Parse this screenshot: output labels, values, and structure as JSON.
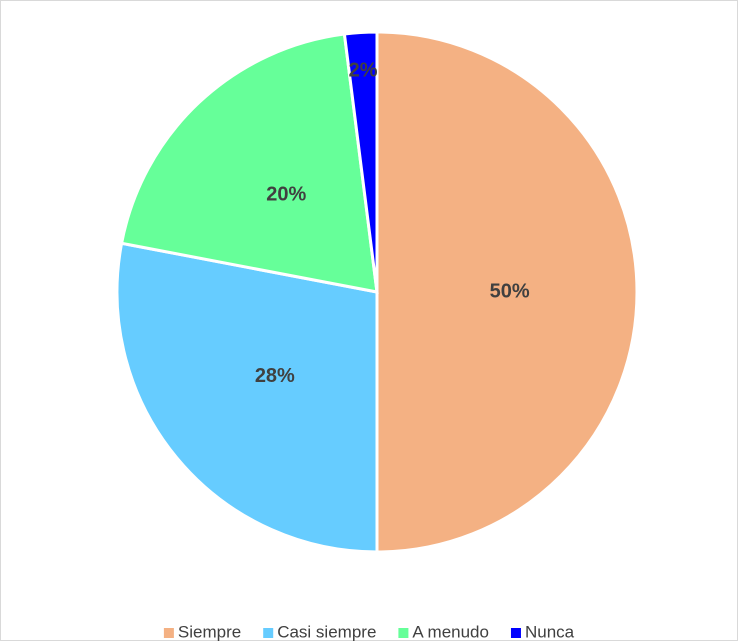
{
  "chart_data": {
    "type": "pie",
    "categories": [
      "Siempre",
      "Casi siempre",
      "A menudo",
      "Nunca"
    ],
    "values": [
      50,
      28,
      20,
      2
    ],
    "value_labels": [
      "50%",
      "28%",
      "20%",
      "2%"
    ],
    "colors": [
      "#f4b183",
      "#66ccff",
      "#66ff99",
      "#0000ff"
    ],
    "legend": "bottom"
  }
}
